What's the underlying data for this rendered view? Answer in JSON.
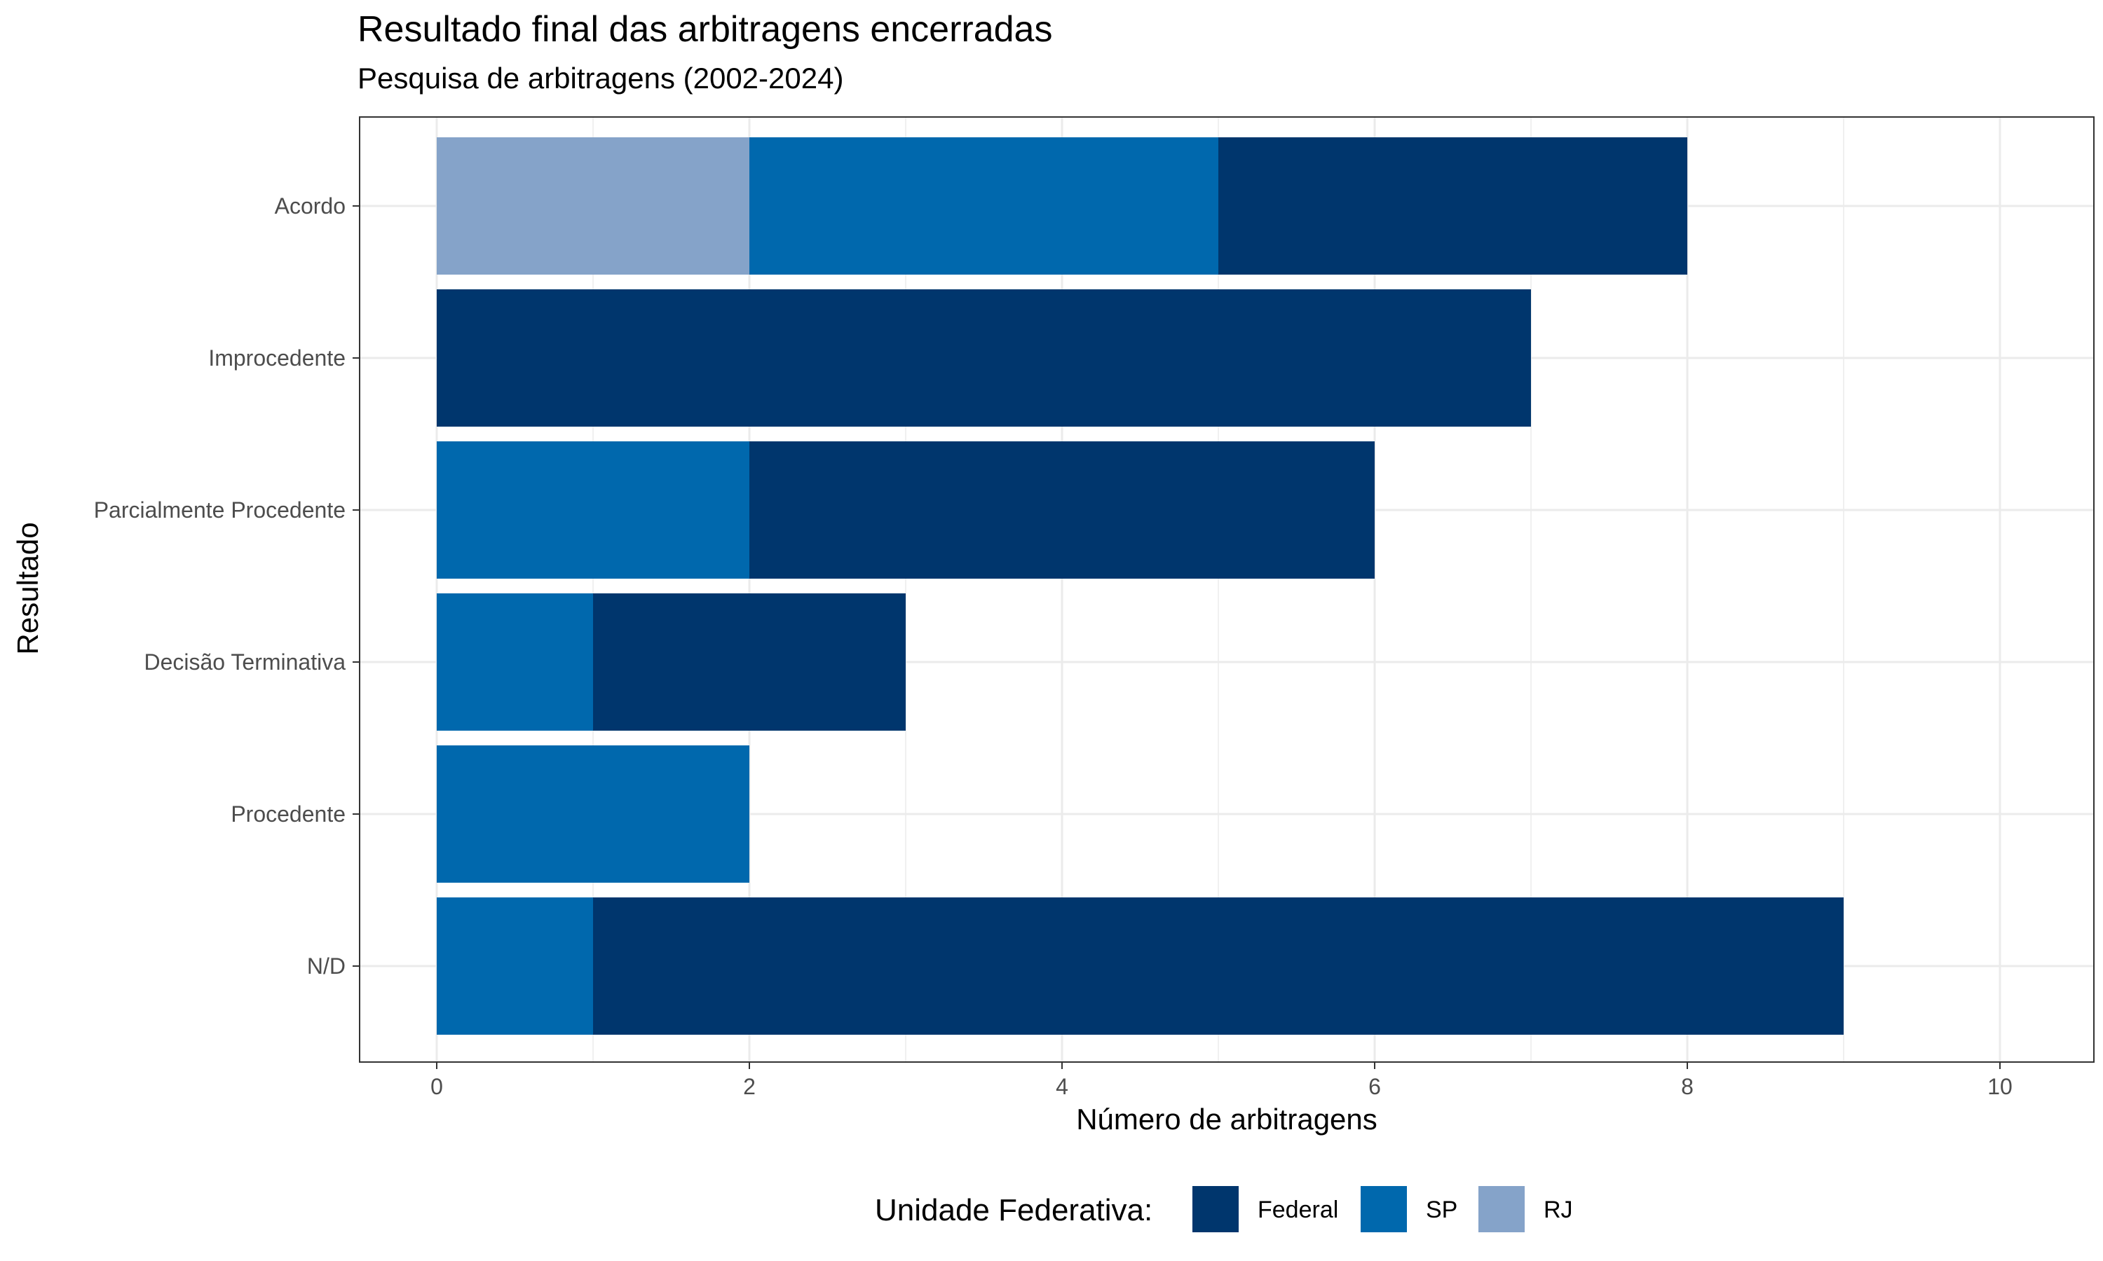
{
  "chart_data": {
    "type": "bar",
    "orientation": "horizontal",
    "stacked": true,
    "title": "Resultado final das arbitragens encerradas",
    "subtitle": "Pesquisa de arbitragens (2002-2024)",
    "xlabel": "Número de arbitragens",
    "ylabel": "Resultado",
    "xlim": [
      0,
      10
    ],
    "xticks": [
      0,
      2,
      4,
      6,
      8,
      10
    ],
    "grid": true,
    "legend_title": "Unidade Federativa:",
    "legend_position": "bottom",
    "categories": [
      "Acordo",
      "Improcedente",
      "Parcialmente Procedente",
      "Decisão Terminativa",
      "Procedente",
      "N/D"
    ],
    "series": [
      {
        "name": "RJ",
        "color": "#85a3c9",
        "values": [
          2,
          0,
          0,
          0,
          0,
          0
        ]
      },
      {
        "name": "SP",
        "color": "#0068ad",
        "values": [
          3,
          0,
          2,
          1,
          2,
          1
        ]
      },
      {
        "name": "Federal",
        "color": "#00366d",
        "values": [
          3,
          7,
          4,
          2,
          0,
          8
        ]
      }
    ],
    "legend_order": [
      "Federal",
      "SP",
      "RJ"
    ]
  }
}
